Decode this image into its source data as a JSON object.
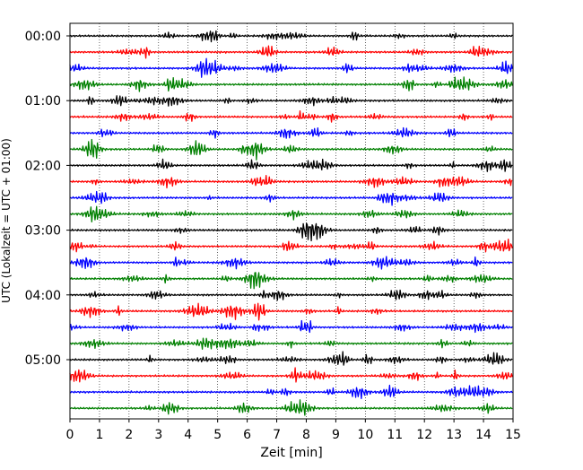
{
  "chart_data": {
    "type": "line",
    "title": "",
    "xlabel": "Zeit  [min]",
    "ylabel": "UTC (Lokalzeit = UTC + 01:00)",
    "xlim": [
      0,
      15
    ],
    "x_ticks": [
      "0",
      "1",
      "2",
      "3",
      "4",
      "5",
      "6",
      "7",
      "8",
      "9",
      "10",
      "11",
      "12",
      "13",
      "14",
      "15"
    ],
    "y_tick_labels": [
      "00:00",
      "01:00",
      "02:00",
      "03:00",
      "04:00",
      "05:00"
    ],
    "trace_interval_minutes": 15,
    "trace_count": 24,
    "trace_colors": [
      "#000000",
      "#ff0000",
      "#0000ff",
      "#008000"
    ],
    "grid": "vertical dotted"
  }
}
